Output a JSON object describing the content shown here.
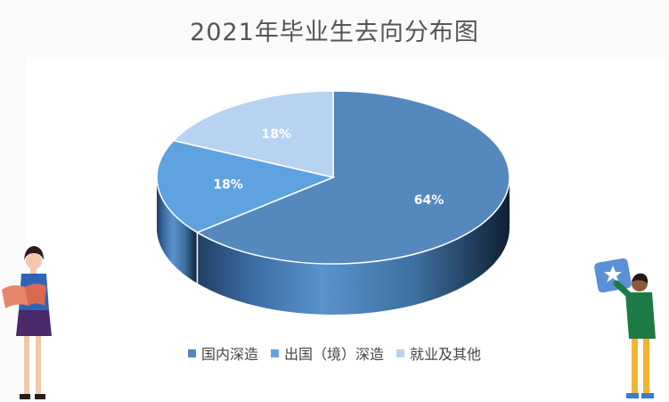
{
  "chart_data": {
    "type": "pie",
    "title": "2021年毕业生去向分布图",
    "categories": [
      "国内深造",
      "出国（境）深造",
      "就业及其他"
    ],
    "values": [
      64,
      18,
      18
    ],
    "labels": [
      "64%",
      "18%",
      "18%"
    ],
    "colors": [
      "#5589be",
      "#5ea3e0",
      "#b8d3f1"
    ],
    "legend_position": "bottom"
  }
}
